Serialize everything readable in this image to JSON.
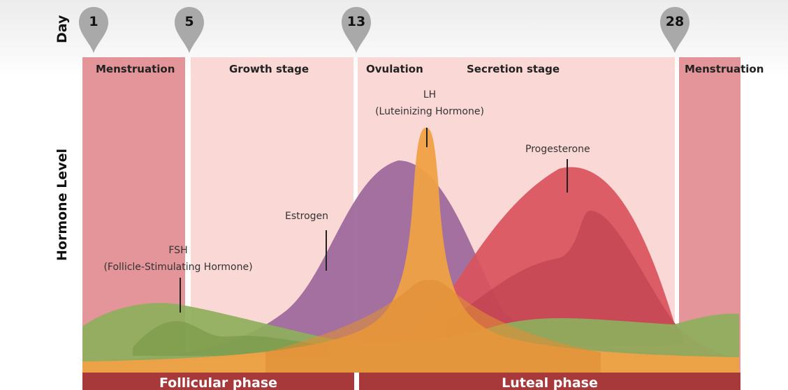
{
  "axis": {
    "top_label": "Day",
    "y_label": "Hormone Level"
  },
  "day_markers": [
    "1",
    "5",
    "13",
    "28"
  ],
  "stages": {
    "menstruation_left": "Menstruation",
    "growth": "Growth stage",
    "ovulation": "Ovulation",
    "secretion": "Secretion stage",
    "menstruation_right": "Menstruation"
  },
  "hormones": {
    "lh_line1": "LH",
    "lh_line2": "(Luteinizing Hormone)",
    "progesterone": "Progesterone",
    "estrogen": "Estrogen",
    "fsh_line1": "FSH",
    "fsh_line2": "(Follicle-Stimulating Hormone)"
  },
  "phases": {
    "follicular": "Follicular phase",
    "luteal": "Luteal phase"
  },
  "colors": {
    "menstruation": "#e39599",
    "stage_bg": "#fad8d5",
    "estrogen": "#9e6a9c",
    "progesterone": "#d9535e",
    "lh": "#f0a145",
    "fsh": "#8fae5d",
    "phase_bar": "#a8393a",
    "pin": "#a9a9a9"
  }
}
